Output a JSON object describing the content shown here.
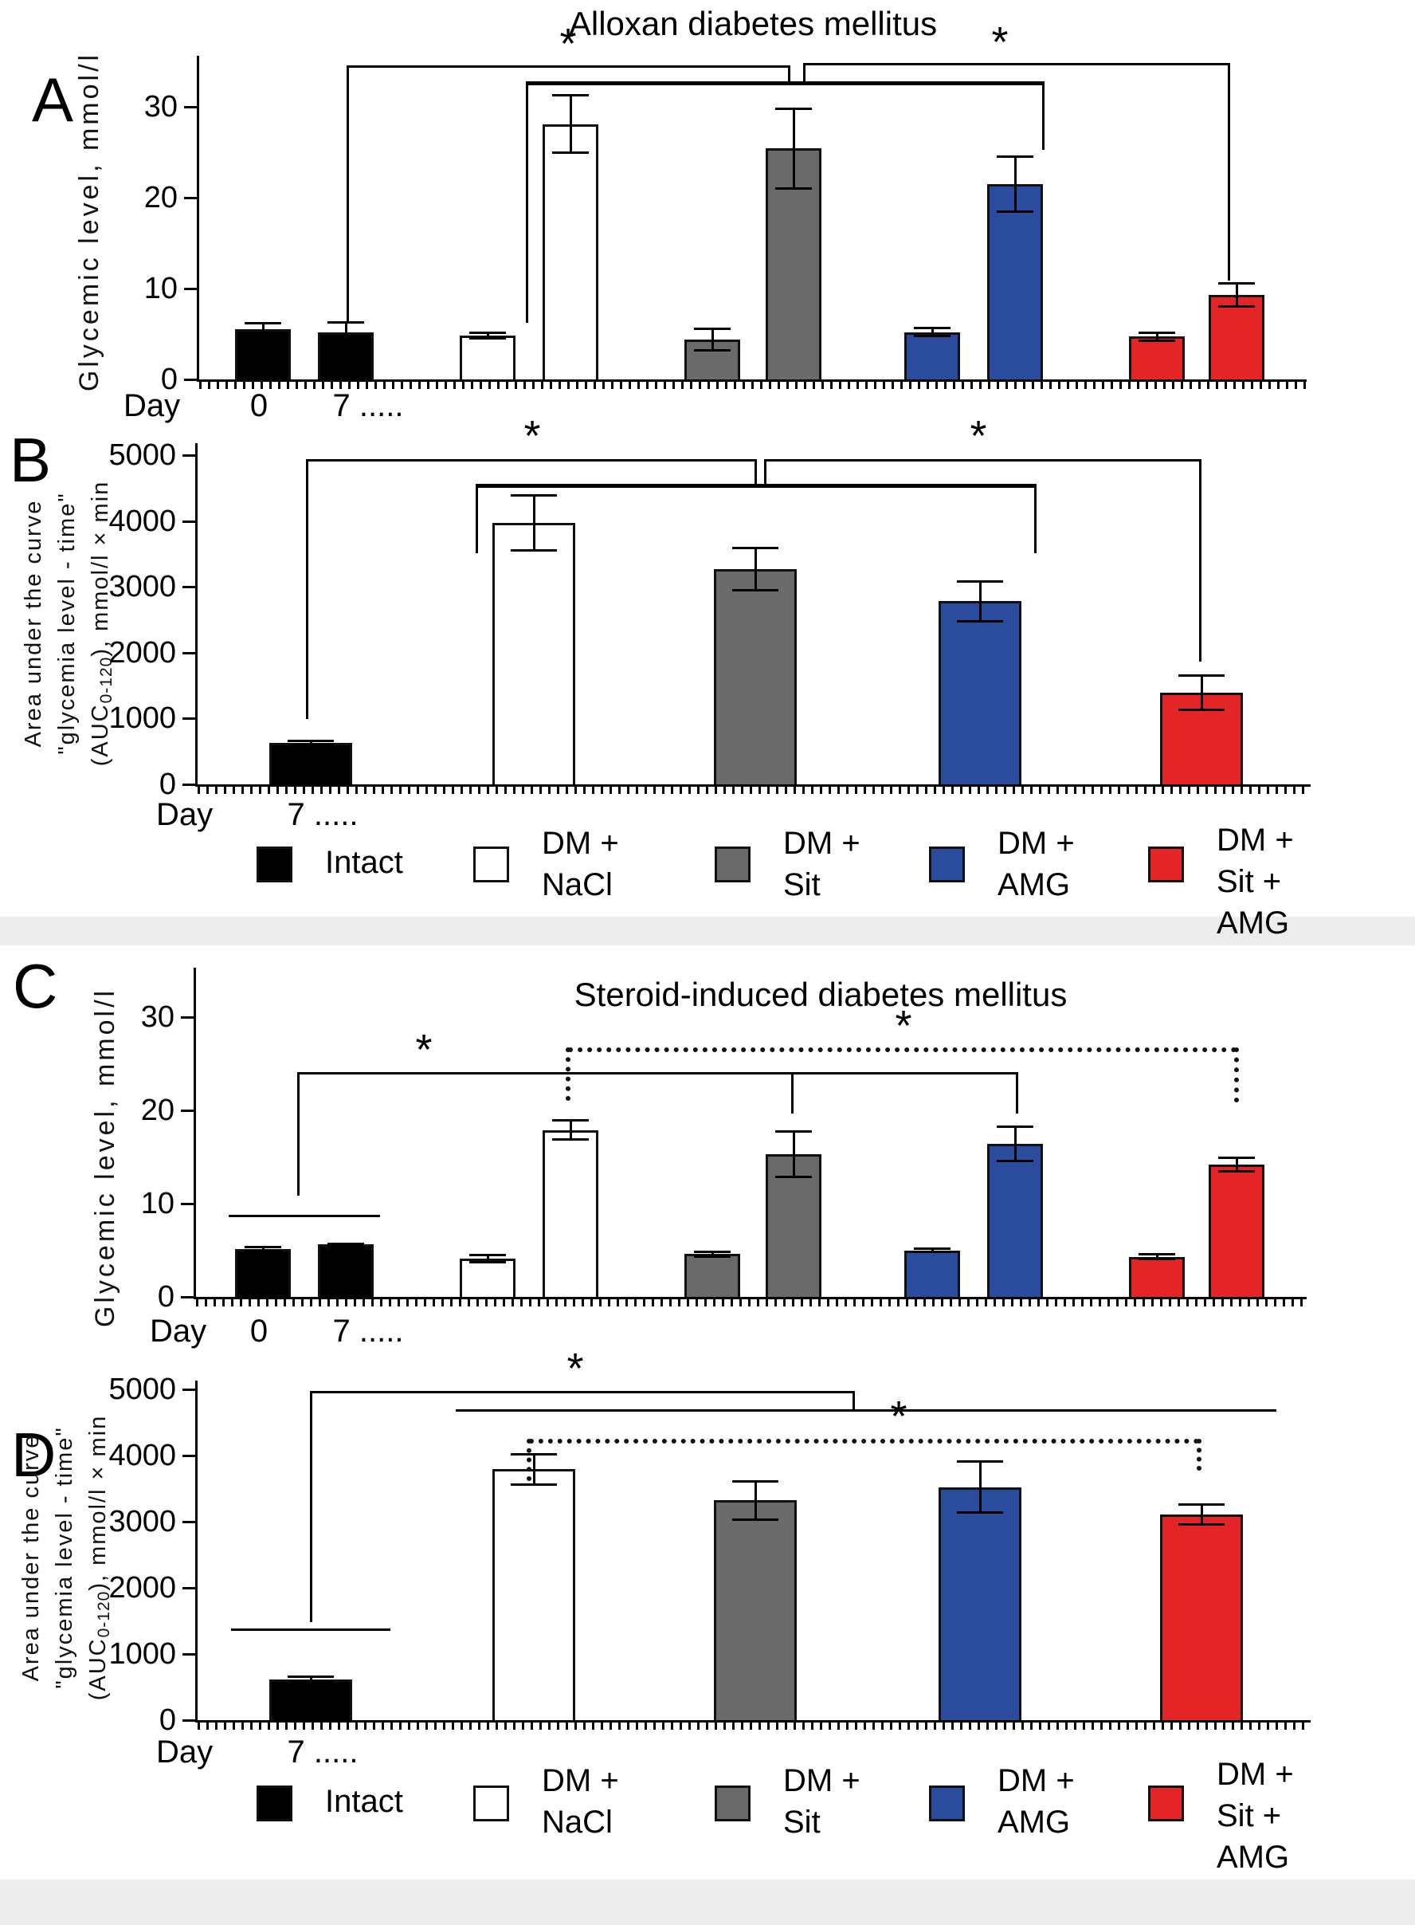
{
  "figure_type": "scientific bar chart figure, four panels",
  "chart_data": [
    {
      "panel_letter": "A",
      "type": "bar",
      "title": "Alloxan diabetes mellitus",
      "ylabel": "Glycemic level, mmol/l",
      "ylim": [
        0,
        35
      ],
      "yticks": [
        "0",
        "10",
        "20",
        "30"
      ],
      "xlabel": "Day",
      "x_tick_labels": [
        "0",
        "7 ....."
      ],
      "categories": [
        "Intact",
        "DM + NaCl",
        "DM + Sit",
        "DM + AMG",
        "DM + Sit + AMG"
      ],
      "series": [
        {
          "name": "Day 0",
          "values": [
            5.5,
            4.8,
            4.4,
            5.2,
            4.7
          ],
          "errors": [
            0.7,
            0.35,
            1.2,
            0.5,
            0.5
          ]
        },
        {
          "name": "Day 7",
          "values": [
            5.2,
            28.1,
            25.4,
            21.5,
            9.3
          ],
          "errors": [
            1.1,
            3.2,
            4.4,
            3.1,
            1.3
          ]
        }
      ],
      "significance": [
        {
          "symbol": "*",
          "from": "Intact (day 7)",
          "to": "DM groups (day 7)"
        },
        {
          "symbol": "*",
          "from": "DM groups (day 7)",
          "to": "DM + Sit + AMG (day 7)"
        },
        {
          "symbol": "",
          "from": "DM + NaCl (day 7)",
          "to": "DM + AMG (day 7)"
        }
      ],
      "grid": false,
      "legend_position": "none"
    },
    {
      "panel_letter": "B",
      "type": "bar",
      "ylabel_lines": [
        "Area under the curve",
        "\"glycemia level - time\""
      ],
      "ylabel_line3": {
        "pre": "(AUC",
        "sub": "0-120",
        "post": "), mmol/l × min"
      },
      "ylim": [
        0,
        5200
      ],
      "yticks": [
        "0",
        "1000",
        "2000",
        "3000",
        "4000",
        "5000"
      ],
      "xlabel": "Day",
      "x_tick_labels": [
        "7 ....."
      ],
      "categories": [
        "Intact",
        "DM + NaCl",
        "DM + Sit",
        "DM + AMG",
        "DM + Sit + AMG"
      ],
      "series": [
        {
          "name": "Day 7",
          "values": [
            630,
            3970,
            3270,
            2780,
            1390
          ],
          "errors": [
            40,
            420,
            330,
            310,
            270
          ]
        }
      ],
      "significance": [
        {
          "symbol": "*",
          "from": "Intact",
          "to": "DM groups"
        },
        {
          "symbol": "*",
          "from": "DM groups",
          "to": "DM + Sit + AMG"
        },
        {
          "symbol": "",
          "from": "DM + NaCl",
          "to": "DM + AMG"
        }
      ],
      "grid": false,
      "legend_position": "bottom"
    },
    {
      "panel_letter": "C",
      "type": "bar",
      "title": "Steroid-induced diabetes mellitus",
      "ylabel": "Glycemic level, mmol/l",
      "ylim": [
        0,
        35
      ],
      "yticks": [
        "0",
        "10",
        "20",
        "30"
      ],
      "xlabel": "Day",
      "x_tick_labels": [
        "0",
        "7 ....."
      ],
      "categories": [
        "Intact",
        "DM + NaCl",
        "DM + Sit",
        "DM + AMG",
        "DM + Sit + AMG"
      ],
      "series": [
        {
          "name": "Day 0",
          "values": [
            5.1,
            4.1,
            4.6,
            5.0,
            4.3
          ],
          "errors": [
            0.25,
            0.4,
            0.3,
            0.2,
            0.3
          ]
        },
        {
          "name": "Day 7",
          "values": [
            5.6,
            17.9,
            15.3,
            16.4,
            14.2
          ],
          "errors": [
            0.15,
            1.1,
            2.5,
            1.9,
            0.8
          ]
        }
      ],
      "significance": [
        {
          "symbol": "*",
          "from": "Intact (both days)",
          "to": "DM groups (day 7)"
        },
        {
          "symbol": "*",
          "from": "DM + NaCl (day 7)",
          "to": "DM + Sit + AMG (day 7)",
          "style": "dotted"
        }
      ],
      "grid": false,
      "legend_position": "none"
    },
    {
      "panel_letter": "D",
      "type": "bar",
      "ylabel_lines": [
        "Area under the curve",
        "\"glycemia level - time\""
      ],
      "ylabel_line3": {
        "pre": "(AUC",
        "sub": "0-120",
        "post": "), mmol/l × min"
      },
      "ylim": [
        0,
        5200
      ],
      "yticks": [
        "0",
        "1000",
        "2000",
        "3000",
        "4000",
        "5000"
      ],
      "xlabel": "Day",
      "x_tick_labels": [
        "7 ....."
      ],
      "categories": [
        "Intact",
        "DM + NaCl",
        "DM + Sit",
        "DM + AMG",
        "DM + Sit + AMG"
      ],
      "series": [
        {
          "name": "Day 7",
          "values": [
            620,
            3790,
            3320,
            3520,
            3110
          ],
          "errors": [
            40,
            240,
            300,
            390,
            160
          ]
        }
      ],
      "significance": [
        {
          "symbol": "*",
          "from": "Intact",
          "to": "DM groups"
        },
        {
          "symbol": "*",
          "from": "DM + NaCl",
          "to": "DM + Sit + AMG",
          "style": "dotted"
        }
      ],
      "grid": false,
      "legend_position": "bottom"
    }
  ],
  "legend": {
    "items": [
      {
        "name": "Intact",
        "lines": [
          "Intact"
        ],
        "color": "#000000"
      },
      {
        "name": "DM + NaCl",
        "lines": [
          "DM +",
          "NaCl"
        ],
        "color": "#ffffff"
      },
      {
        "name": "DM + Sit",
        "lines": [
          "DM +",
          "Sit"
        ],
        "color": "#6a6a6a"
      },
      {
        "name": "DM + AMG",
        "lines": [
          "DM +",
          "AMG"
        ],
        "color": "#2b4b9c"
      },
      {
        "name": "DM + Sit + AMG",
        "lines": [
          "DM +",
          "Sit +",
          "AMG"
        ],
        "color": "#e42528"
      }
    ]
  },
  "colors": {
    "bar_border": "#111111",
    "axis": "#000000",
    "background": "#ffffff",
    "band": "#ececec"
  }
}
